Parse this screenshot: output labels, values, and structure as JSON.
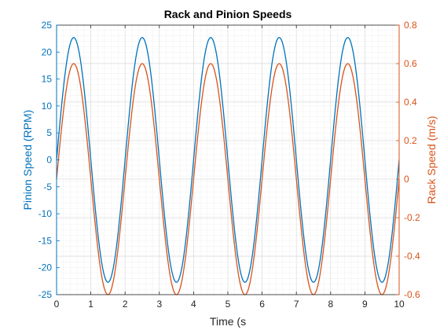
{
  "chart_data": {
    "type": "line",
    "title": "Rack and Pinion Speeds",
    "xlabel": "Time (s",
    "xlim": [
      0,
      10
    ],
    "xticks": [
      "0",
      "1",
      "2",
      "3",
      "4",
      "5",
      "6",
      "7",
      "8",
      "9",
      "10"
    ],
    "grid": true,
    "left_axis": {
      "label": "Pinion Speed (RPM)",
      "color": "#0072BD",
      "ylim": [
        -25,
        25
      ],
      "ticks": [
        "25",
        "20",
        "15",
        "10",
        "5",
        "0",
        "-5",
        "-10",
        "-15",
        "-20",
        "-25"
      ]
    },
    "right_axis": {
      "label": "Rack Speed (m/s)",
      "color": "#D95319",
      "ylim": [
        -0.6,
        0.8
      ],
      "ticks": [
        "0.8",
        "0.6",
        "0.4",
        "0.2",
        "0",
        "-0.2",
        "-0.4",
        "-0.6"
      ]
    },
    "series": [
      {
        "axis": "left",
        "color": "#0072BD",
        "function": "sine",
        "amplitude": 22.7,
        "period": 2,
        "phase": 0,
        "x_range": [
          0,
          10
        ]
      },
      {
        "axis": "right",
        "color": "#D95319",
        "function": "sine",
        "amplitude": 0.6,
        "period": 2,
        "phase": 0,
        "x_range": [
          0,
          10
        ]
      }
    ]
  }
}
